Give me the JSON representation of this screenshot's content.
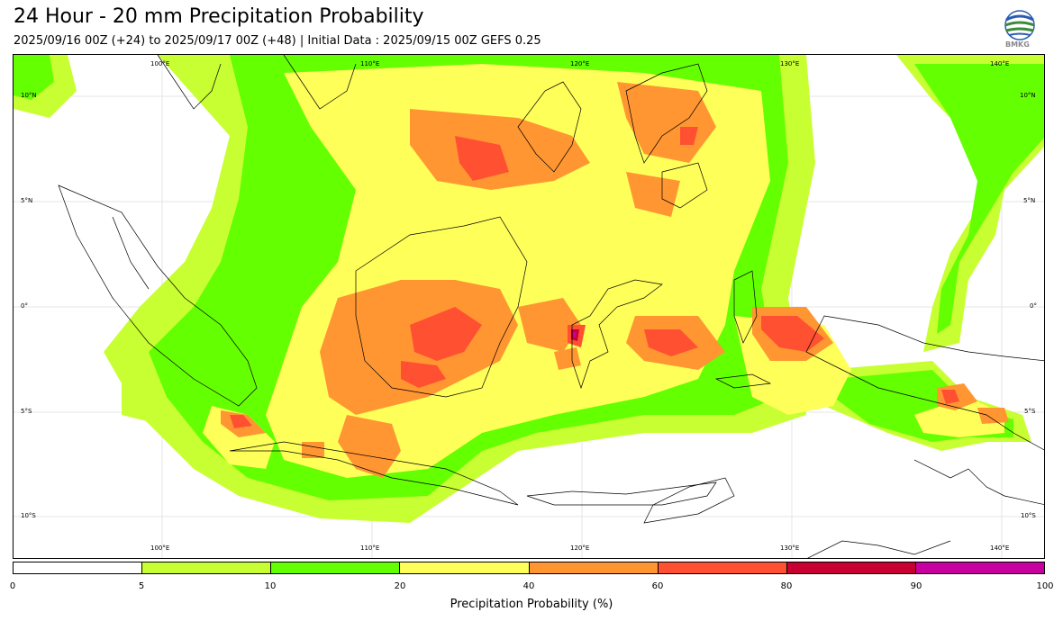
{
  "title": "24 Hour - 20 mm Precipitation Probability",
  "subtitle": "2025/09/16 00Z (+24) to 2025/09/17 00Z (+48) | Initial Data : 2025/09/15 00Z GEFS 0.25",
  "logo_text": "BMKG",
  "map": {
    "lon_labels_top": [
      "100°E",
      "110°E",
      "120°E",
      "130°E",
      "140°E"
    ],
    "lon_labels_bottom": [
      "100°E",
      "110°E",
      "120°E",
      "130°E",
      "140°E"
    ],
    "lat_labels_left": [
      "10°N",
      "5°N",
      "0°",
      "5°S",
      "10°S"
    ],
    "lat_labels_right": [
      "10°N",
      "5°N",
      "0°",
      "5°S",
      "10°S"
    ]
  },
  "colorbar": {
    "label": "Precipitation Probability (%)",
    "ticks": [
      "0",
      "5",
      "10",
      "20",
      "40",
      "60",
      "80",
      "90",
      "100"
    ],
    "colors": [
      "#ffffff",
      "#c8ff32",
      "#64ff00",
      "#ffff5a",
      "#ff9632",
      "#ff5032",
      "#c80032",
      "#c800a0"
    ]
  }
}
